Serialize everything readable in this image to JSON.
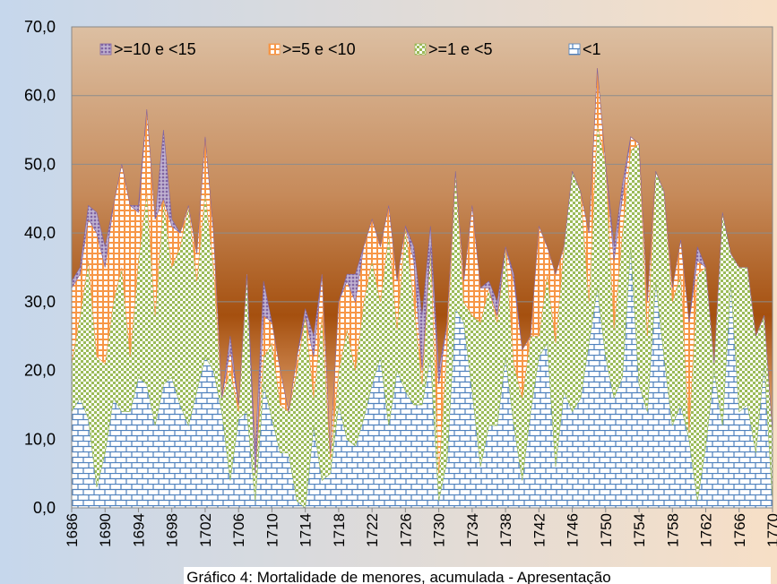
{
  "chart_data": {
    "type": "stacked-area",
    "title": "Gráfico 4: Mortalidade de menores, acumulada - Apresentação",
    "x": [
      1686,
      1687,
      1688,
      1689,
      1690,
      1691,
      1692,
      1693,
      1694,
      1695,
      1696,
      1697,
      1698,
      1699,
      1700,
      1701,
      1702,
      1703,
      1704,
      1705,
      1706,
      1707,
      1708,
      1709,
      1710,
      1711,
      1712,
      1713,
      1714,
      1715,
      1716,
      1717,
      1718,
      1719,
      1720,
      1721,
      1722,
      1723,
      1724,
      1725,
      1726,
      1727,
      1728,
      1729,
      1730,
      1731,
      1732,
      1733,
      1734,
      1735,
      1736,
      1737,
      1738,
      1739,
      1740,
      1741,
      1742,
      1743,
      1744,
      1745,
      1746,
      1747,
      1748,
      1749,
      1750,
      1751,
      1752,
      1753,
      1754,
      1755,
      1756,
      1757,
      1758,
      1759,
      1760,
      1761,
      1762,
      1763,
      1764,
      1765,
      1766,
      1767,
      1768,
      1769,
      1770
    ],
    "xlim": [
      1686,
      1770
    ],
    "xticks": [
      1686,
      1690,
      1694,
      1698,
      1702,
      1706,
      1710,
      1714,
      1718,
      1722,
      1726,
      1730,
      1734,
      1738,
      1742,
      1746,
      1750,
      1754,
      1758,
      1762,
      1766,
      1770
    ],
    "ylim": [
      0,
      70
    ],
    "yticks": [
      {
        "value": 0,
        "label": "0,0"
      },
      {
        "value": 10,
        "label": "10,0"
      },
      {
        "value": 20,
        "label": "20,0"
      },
      {
        "value": 30,
        "label": "30,0"
      },
      {
        "value": 40,
        "label": "40,0"
      },
      {
        "value": 50,
        "label": "50,0"
      },
      {
        "value": 60,
        "label": "60,0"
      },
      {
        "value": 70,
        "label": "70,0"
      }
    ],
    "grid": true,
    "legend": "top",
    "series": [
      {
        "name": "<1",
        "color": "#4f81bd",
        "values": [
          14,
          16,
          13,
          3,
          8,
          16,
          14,
          14,
          19,
          18,
          12,
          18,
          19,
          15,
          12,
          17,
          22,
          20,
          14,
          4,
          13,
          14,
          1,
          18,
          13,
          8,
          8,
          1,
          0,
          12,
          4,
          5,
          15,
          10,
          9,
          13,
          18,
          22,
          12,
          20,
          17,
          15,
          15,
          22,
          1,
          7,
          29,
          27,
          17,
          6,
          12,
          12,
          22,
          12,
          4,
          14,
          22,
          24,
          6,
          17,
          14,
          16,
          24,
          32,
          22,
          16,
          19,
          38,
          18,
          14,
          33,
          22,
          12,
          15,
          10,
          1,
          9,
          20,
          12,
          33,
          14,
          15,
          8,
          21,
          1
        ]
      },
      {
        "name": ">=1 e <5",
        "color": "#9bbb59",
        "values": [
          7,
          12,
          23,
          19,
          13,
          14,
          21,
          8,
          17,
          28,
          16,
          27,
          16,
          23,
          32,
          16,
          24,
          15,
          2,
          16,
          1,
          20,
          4,
          4,
          11,
          7,
          6,
          19,
          28,
          4,
          24,
          2,
          5,
          16,
          11,
          17,
          18,
          8,
          28,
          6,
          24,
          15,
          3,
          16,
          4,
          17,
          20,
          3,
          11,
          21,
          20,
          15,
          16,
          9,
          12,
          11,
          3,
          10,
          18,
          21,
          35,
          30,
          6,
          24,
          28,
          10,
          21,
          14,
          35,
          11,
          16,
          24,
          18,
          19,
          1,
          33,
          26,
          1,
          31,
          4,
          21,
          20,
          17,
          7,
          10
        ]
      },
      {
        "name": ">=5 e <10",
        "color": "#f79646",
        "values": [
          11,
          6,
          6,
          18,
          14,
          14,
          15,
          22,
          7,
          12,
          14,
          0,
          6,
          2,
          0,
          4,
          8,
          5,
          0,
          3,
          1,
          0,
          0,
          6,
          3,
          5,
          0,
          2,
          0,
          6,
          6,
          1,
          10,
          7,
          10,
          8,
          6,
          8,
          4,
          7,
          0,
          6,
          2,
          0,
          13,
          3,
          0,
          3,
          16,
          5,
          0,
          1,
          0,
          12,
          7,
          0,
          16,
          4,
          10,
          0,
          0,
          0,
          10,
          8,
          0,
          10,
          5,
          2,
          0,
          5,
          0,
          0,
          2,
          5,
          16,
          2,
          0,
          0,
          0,
          0,
          0,
          0,
          0,
          0,
          0
        ]
      },
      {
        "name": ">=10 e <15",
        "color": "#8064a2",
        "values": [
          1,
          1,
          2,
          3,
          3,
          0,
          0,
          0,
          1,
          0,
          0,
          10,
          1,
          0,
          0,
          0,
          0,
          0,
          0,
          2,
          0,
          0,
          3,
          5,
          0,
          0,
          0,
          0,
          1,
          3,
          0,
          0,
          0,
          1,
          4,
          0,
          0,
          0,
          0,
          0,
          0,
          2,
          8,
          3,
          2,
          0,
          0,
          0,
          0,
          0,
          1,
          2,
          0,
          1,
          0,
          0,
          0,
          0,
          0,
          0,
          0,
          0,
          0,
          0,
          0,
          2,
          2,
          0,
          0,
          0,
          0,
          0,
          0,
          0,
          0,
          2,
          0,
          0,
          0,
          0,
          0,
          0,
          0,
          0,
          0
        ]
      }
    ]
  }
}
